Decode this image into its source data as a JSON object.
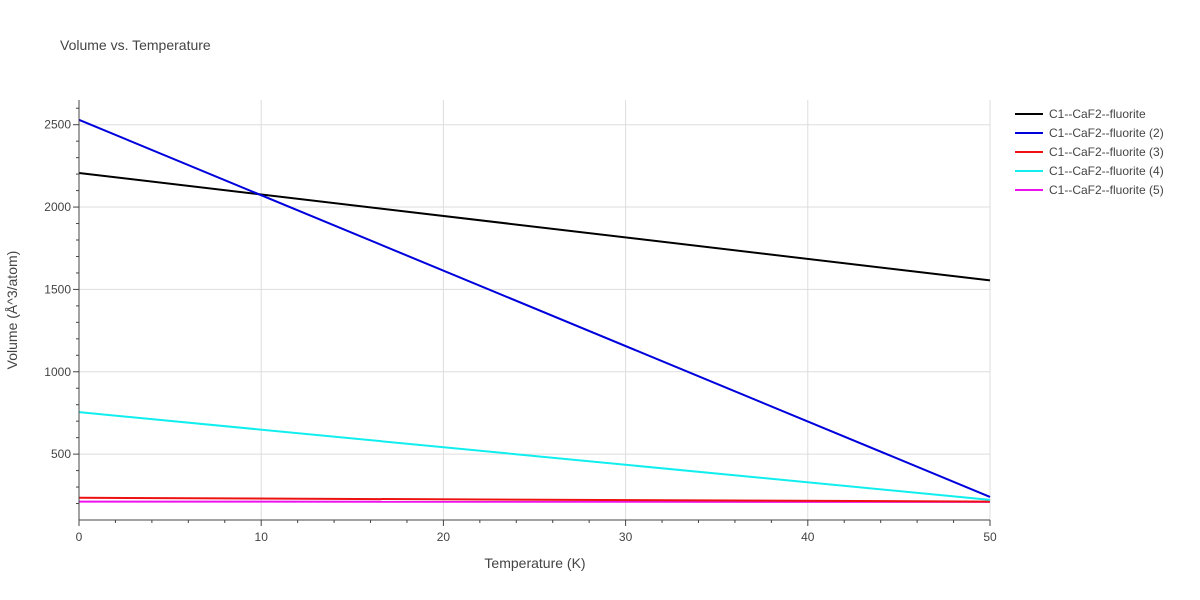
{
  "chart_data": {
    "type": "line",
    "title": "Volume vs. Temperature",
    "xlabel": "Temperature (K)",
    "ylabel": "Volume (Å^3/atom)",
    "xlim": [
      0,
      50
    ],
    "ylim": [
      100,
      2650
    ],
    "x_ticks": [
      0,
      10,
      20,
      30,
      40,
      50
    ],
    "y_ticks": [
      500,
      1000,
      1500,
      2000,
      2500
    ],
    "grid": true,
    "legend_position": "top-right",
    "series": [
      {
        "name": "C1--CaF2--fluorite",
        "color": "#000000",
        "x": [
          0,
          50
        ],
        "y": [
          2207,
          1555
        ]
      },
      {
        "name": "C1--CaF2--fluorite (2)",
        "color": "#0000dd",
        "x": [
          0,
          50
        ],
        "y": [
          2530,
          240
        ]
      },
      {
        "name": "C1--CaF2--fluorite (3)",
        "color": "#ee1111",
        "x": [
          0,
          50
        ],
        "y": [
          235,
          212
        ]
      },
      {
        "name": "C1--CaF2--fluorite (4)",
        "color": "#11eeee",
        "x": [
          0,
          50
        ],
        "y": [
          755,
          222
        ]
      },
      {
        "name": "C1--CaF2--fluorite (5)",
        "color": "#ee11ee",
        "x": [
          0,
          50
        ],
        "y": [
          212,
          210
        ]
      }
    ]
  }
}
